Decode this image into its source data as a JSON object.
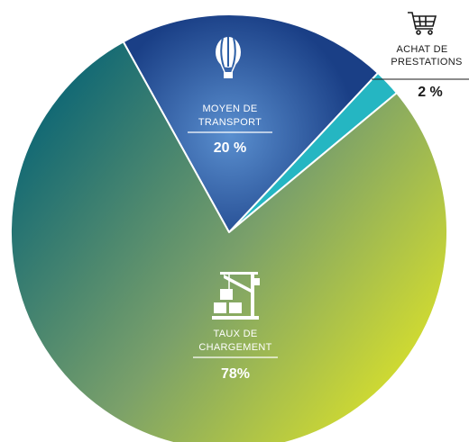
{
  "chart_data": {
    "type": "pie",
    "categories": [
      "MOYEN DE TRANSPORT",
      "ACHAT DE PRESTATIONS",
      "TAUX DE CHARGEMENT"
    ],
    "values": [
      20,
      2,
      78
    ],
    "value_labels": [
      "20 %",
      "2 %",
      "78%"
    ],
    "category_lines": [
      [
        "MOYEN DE",
        "TRANSPORT"
      ],
      [
        "ACHAT DE",
        "PRESTATIONS"
      ],
      [
        "TAUX DE",
        "CHARGEMENT"
      ]
    ],
    "icons": [
      "hot-air-balloon-icon",
      "shopping-cart-icon",
      "crane-cargo-icon"
    ],
    "colors": {
      "transport_center": "#5a8fcf",
      "transport_edge": "#1a3f86",
      "achat": "#25b6c2",
      "chargement_start": "#146a74",
      "chargement_end": "#dbe22a"
    }
  }
}
